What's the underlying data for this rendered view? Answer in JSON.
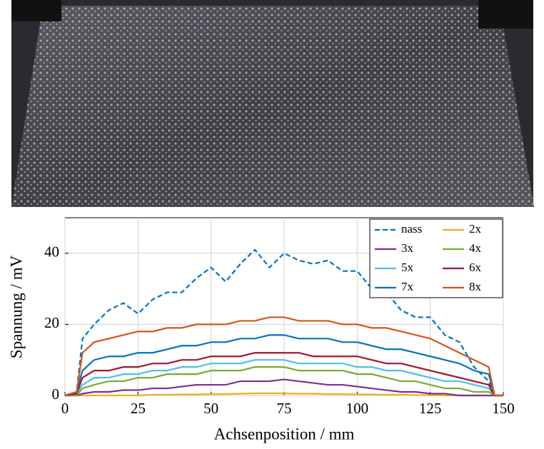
{
  "chart_data": {
    "type": "line",
    "xlabel": "Achsenposition / mm",
    "ylabel": "Spannung / mV",
    "x": [
      0,
      4,
      6,
      10,
      15,
      20,
      25,
      30,
      35,
      40,
      45,
      50,
      55,
      60,
      65,
      70,
      75,
      80,
      85,
      90,
      95,
      100,
      105,
      110,
      115,
      120,
      125,
      130,
      135,
      140,
      145,
      147,
      150
    ],
    "series": [
      {
        "name": "nass",
        "color": "#0072bd",
        "style": "dashed",
        "values": [
          0,
          1,
          16,
          20,
          24,
          26,
          23,
          27,
          29,
          29,
          33,
          36,
          32,
          37,
          41,
          36,
          40,
          38,
          37,
          38,
          35,
          35,
          30,
          29,
          24,
          22,
          22,
          17,
          15,
          8,
          4,
          0,
          0
        ]
      },
      {
        "name": "2x",
        "color": "#edb120",
        "style": "solid",
        "values": [
          0,
          0,
          0,
          0,
          0,
          0,
          0,
          0.2,
          0.2,
          0.3,
          0.3,
          0.4,
          0.4,
          0.5,
          0.6,
          0.6,
          0.6,
          0.5,
          0.5,
          0.4,
          0.4,
          0.3,
          0.3,
          0.2,
          0.2,
          0.1,
          0.1,
          0,
          0,
          0,
          0,
          0,
          0
        ]
      },
      {
        "name": "3x",
        "color": "#7e2f8e",
        "style": "solid",
        "values": [
          0,
          0,
          0.5,
          1,
          1,
          1.5,
          1.5,
          2,
          2,
          2.5,
          3,
          3,
          3,
          4,
          4,
          4,
          4.5,
          4,
          3.5,
          3,
          3,
          2.5,
          2,
          1.5,
          1,
          1,
          0.5,
          0.5,
          0,
          0,
          0,
          0,
          0
        ]
      },
      {
        "name": "4x",
        "color": "#77ac30",
        "style": "solid",
        "values": [
          0,
          0,
          2,
          3,
          4,
          4,
          5,
          5,
          6,
          6,
          6,
          7,
          7,
          7,
          8,
          8,
          8,
          7,
          7,
          7,
          7,
          6,
          6,
          5,
          4,
          4,
          3,
          2,
          2,
          1,
          1,
          0,
          0
        ]
      },
      {
        "name": "5x",
        "color": "#4dbeee",
        "style": "solid",
        "values": [
          0,
          0.5,
          3,
          5,
          5,
          6,
          6,
          7,
          7,
          8,
          8,
          9,
          9,
          9,
          10,
          10,
          10,
          9,
          9,
          9,
          9,
          8,
          8,
          7,
          7,
          6,
          5,
          4,
          4,
          3,
          2,
          0,
          0
        ]
      },
      {
        "name": "6x",
        "color": "#a2142f",
        "style": "solid",
        "values": [
          0,
          0.5,
          5,
          7,
          7,
          8,
          8,
          9,
          9,
          10,
          10,
          11,
          11,
          11,
          12,
          12,
          12,
          12,
          11,
          11,
          11,
          11,
          10,
          9,
          9,
          8,
          7,
          6,
          5,
          4,
          3,
          0,
          0
        ]
      },
      {
        "name": "7x",
        "color": "#0072bd",
        "style": "solid",
        "values": [
          0,
          1,
          7,
          10,
          11,
          11,
          12,
          12,
          13,
          14,
          14,
          15,
          15,
          16,
          16,
          17,
          17,
          16,
          16,
          16,
          15,
          15,
          14,
          13,
          13,
          12,
          11,
          10,
          9,
          7,
          6,
          0,
          0
        ]
      },
      {
        "name": "8x",
        "color": "#d95319",
        "style": "solid",
        "values": [
          0,
          1,
          12,
          15,
          16,
          17,
          18,
          18,
          19,
          19,
          20,
          20,
          20,
          21,
          21,
          22,
          22,
          21,
          21,
          21,
          20,
          20,
          19,
          19,
          18,
          17,
          16,
          14,
          12,
          10,
          8,
          0,
          0
        ]
      }
    ],
    "xlim": [
      0,
      150
    ],
    "ylim": [
      0,
      50
    ],
    "xticks": [
      0,
      25,
      50,
      75,
      100,
      125,
      150
    ],
    "yticks": [
      0,
      20,
      40
    ],
    "grid": true,
    "legend": "top-right"
  }
}
